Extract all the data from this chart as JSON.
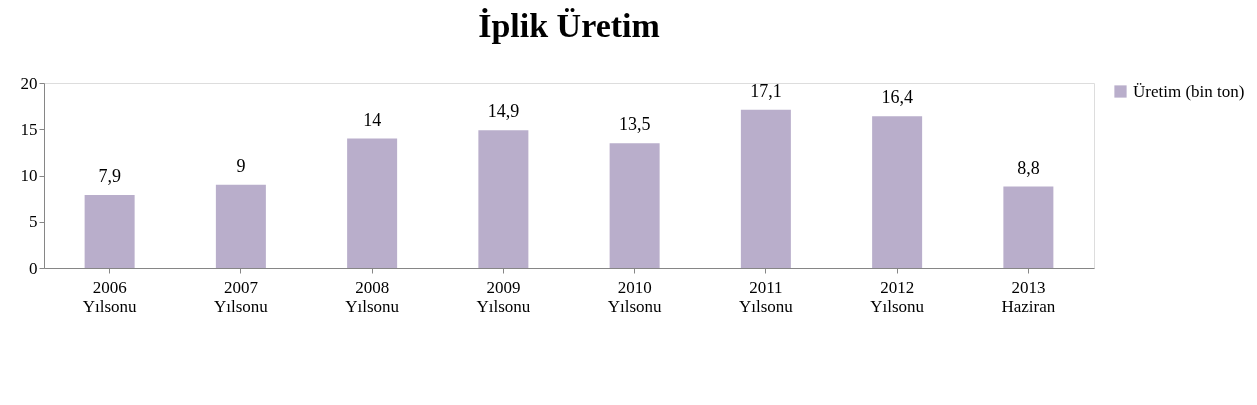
{
  "chart_data": {
    "type": "bar",
    "title": "İplik Üretim",
    "categories": [
      "2006 Yılsonu",
      "2007 Yılsonu",
      "2008 Yılsonu",
      "2009 Yılsonu",
      "2010 Yılsonu",
      "2011 Yılsonu",
      "2012 Yılsonu",
      "2013 Haziran"
    ],
    "series": [
      {
        "name": "Üretim (bin ton)",
        "color": "#b9aecb",
        "values": [
          7.9,
          9,
          14,
          14.9,
          13.5,
          17.1,
          16.4,
          8.8
        ],
        "value_labels": [
          "7,9",
          "9",
          "14",
          "14,9",
          "13,5",
          "17,1",
          "16,4",
          "8,8"
        ]
      }
    ],
    "ylim": [
      0,
      20
    ],
    "yticks": [
      0,
      5,
      10,
      15,
      20
    ],
    "grid": false,
    "legend": "right"
  }
}
